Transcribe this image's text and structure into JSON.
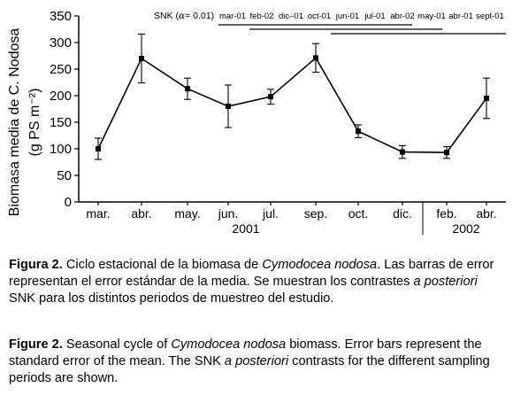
{
  "chart_data": {
    "type": "line",
    "ylabel": "Biomasa media de C. Nodosa",
    "ylabel_units": "(g PS m⁻²)",
    "yticks": [
      0,
      50,
      100,
      150,
      200,
      250,
      300,
      350
    ],
    "ylim": [
      0,
      350
    ],
    "categories": [
      "mar.",
      "abr.",
      "may.",
      "jun.",
      "jul.",
      "sep.",
      "oct.",
      "dic.",
      "feb.",
      "abr."
    ],
    "year_labels": [
      "2001",
      "2002"
    ],
    "values": [
      100,
      270,
      213,
      180,
      198,
      271,
      133,
      94,
      93,
      195
    ],
    "errors": [
      20,
      46,
      20,
      40,
      14,
      27,
      12,
      12,
      11,
      38
    ],
    "error_bars": "standard error of the mean",
    "grid": false,
    "snk": {
      "label_prefix": "SNK (",
      "alpha_symbol": "α",
      "label_suffix": "= 0.01)",
      "groups": [
        "mar-01",
        "feb-02",
        "dic–01",
        "oct-01",
        "jun-01",
        "jul-01",
        "abr-02",
        "may-01",
        "abr-01",
        "sept-01"
      ]
    }
  },
  "caption_es": {
    "lead": "Figura 2.",
    "t1": " Ciclo estacional de la biomasa de ",
    "i1": "Cymodocea nodosa",
    "t2": ". Las barras de error representan el error estándar de la media. Se muestran los contrastes ",
    "i2": "a posteriori",
    "t3": " SNK para los distintos periodos de muestreo del estudio."
  },
  "caption_en": {
    "lead": "Figure 2.",
    "t1": " Seasonal cycle of ",
    "i1": "Cymodocea nodosa",
    "t2": " biomass. Error bars represent the standard error of the mean. The SNK ",
    "i2": "a posteriori",
    "t3": " contrasts for the different sampling periods are shown."
  }
}
